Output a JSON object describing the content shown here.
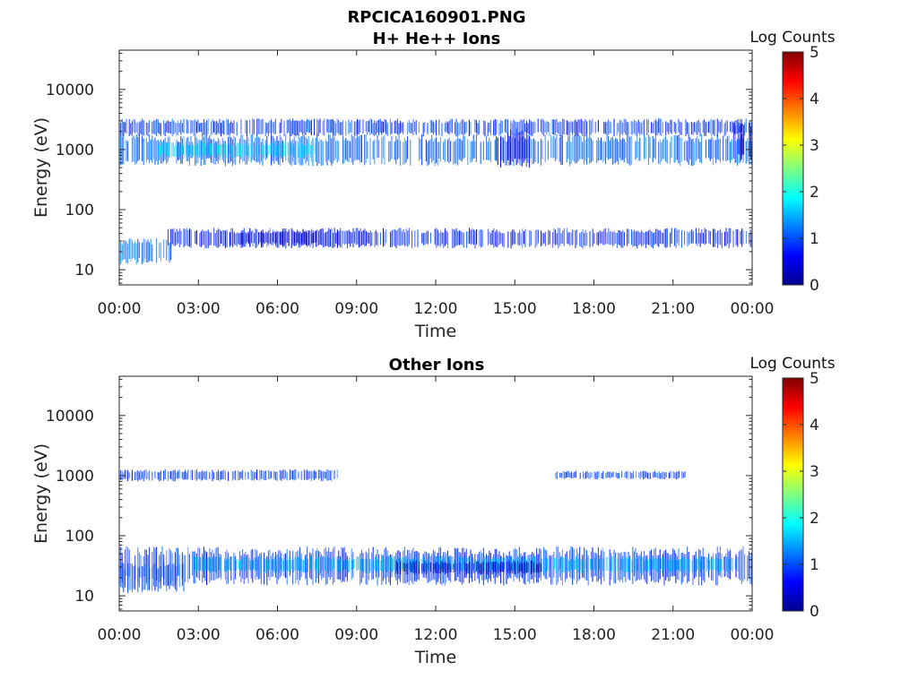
{
  "figure_title": "RPCICA160901.PNG",
  "chart_data": [
    {
      "type": "heatmap",
      "title": "H+ He++ Ions",
      "xlabel": "Time",
      "ylabel": "Energy (eV)",
      "y_scale": "log",
      "ylim": [
        5.6,
        45000
      ],
      "xlim_hours": [
        0,
        24
      ],
      "x_ticks": [
        "00:00",
        "03:00",
        "06:00",
        "09:00",
        "12:00",
        "15:00",
        "18:00",
        "21:00",
        "00:00"
      ],
      "y_ticks": [
        10,
        100,
        1000,
        10000
      ],
      "y_tick_labels": [
        "10",
        "100",
        "1000",
        "10000"
      ],
      "colorbar": {
        "label": "Log Counts",
        "min": 0,
        "max": 5,
        "ticks": [
          "0",
          "1",
          "2",
          "3",
          "4",
          "5"
        ],
        "colormap": "jet"
      },
      "bands": [
        {
          "start_hour": 0.0,
          "end_hour": 24.0,
          "energy_low": 620,
          "energy_high": 1550,
          "level": 1.1
        },
        {
          "start_hour": 1.5,
          "end_hour": 7.5,
          "energy_low": 780,
          "energy_high": 1250,
          "level": 1.7
        },
        {
          "start_hour": 14.3,
          "end_hour": 15.6,
          "energy_low": 600,
          "energy_high": 1900,
          "level": 0.5
        },
        {
          "start_hour": 0.0,
          "end_hour": 24.0,
          "energy_low": 1800,
          "energy_high": 3000,
          "level": 0.9
        },
        {
          "start_hour": 23.3,
          "end_hour": 24.0,
          "energy_low": 700,
          "energy_high": 3100,
          "level": 0.4
        },
        {
          "start_hour": 1.8,
          "end_hour": 24.0,
          "energy_low": 25,
          "energy_high": 45,
          "level": 0.8
        },
        {
          "start_hour": 4.2,
          "end_hour": 7.5,
          "energy_low": 27,
          "energy_high": 42,
          "level": 0.4
        },
        {
          "start_hour": 0.0,
          "end_hour": 2.0,
          "energy_low": 14,
          "energy_high": 30,
          "level": 1.2
        }
      ]
    },
    {
      "type": "heatmap",
      "title": "Other Ions",
      "xlabel": "Time",
      "ylabel": "Energy (eV)",
      "y_scale": "log",
      "ylim": [
        5.6,
        45000
      ],
      "xlim_hours": [
        0,
        24
      ],
      "x_ticks": [
        "00:00",
        "03:00",
        "06:00",
        "09:00",
        "12:00",
        "15:00",
        "18:00",
        "21:00",
        "00:00"
      ],
      "y_ticks": [
        10,
        100,
        1000,
        10000
      ],
      "y_tick_labels": [
        "10",
        "100",
        "1000",
        "10000"
      ],
      "colorbar": {
        "label": "Log Counts",
        "min": 0,
        "max": 5,
        "ticks": [
          "0",
          "1",
          "2",
          "3",
          "4",
          "5"
        ],
        "colormap": "jet"
      },
      "bands": [
        {
          "start_hour": 0.0,
          "end_hour": 24.0,
          "energy_low": 18,
          "energy_high": 55,
          "level": 0.9
        },
        {
          "start_hour": 2.8,
          "end_hour": 23.5,
          "energy_low": 26,
          "energy_high": 42,
          "level": 1.5
        },
        {
          "start_hour": 10.5,
          "end_hour": 16.0,
          "energy_low": 24,
          "energy_high": 36,
          "level": 0.3
        },
        {
          "start_hour": 0.0,
          "end_hour": 2.5,
          "energy_low": 13,
          "energy_high": 32,
          "level": 1.0
        },
        {
          "start_hour": 0.0,
          "end_hour": 8.3,
          "energy_low": 850,
          "energy_high": 1200,
          "level": 0.9
        },
        {
          "start_hour": 16.5,
          "end_hour": 21.5,
          "energy_low": 900,
          "energy_high": 1150,
          "level": 0.9
        }
      ]
    }
  ]
}
